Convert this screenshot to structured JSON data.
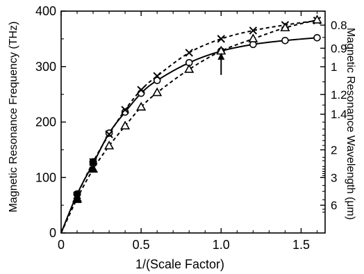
{
  "chart_data": {
    "type": "line",
    "xlabel": "1/(Scale Factor)",
    "ylabel": "Magnetic Resonance Frequency (THz)",
    "y2label": "Magnetic Resonance Wavelength (μm)",
    "xlim": [
      0,
      1.65
    ],
    "ylim": [
      0,
      400
    ],
    "xticks": [
      0,
      0.5,
      1.0,
      1.5
    ],
    "xtick_labels": [
      "0",
      "0.5",
      "1.0",
      "1.5"
    ],
    "yticks": [
      0,
      100,
      200,
      300,
      400
    ],
    "ytick_labels": [
      "0",
      "100",
      "200",
      "300",
      "400"
    ],
    "y2_major_ticks": [
      {
        "freq": 374.74,
        "label": "0.8"
      },
      {
        "freq": 333.1,
        "label": "0.9"
      },
      {
        "freq": 299.79,
        "label": "1"
      },
      {
        "freq": 249.83,
        "label": "1.2"
      },
      {
        "freq": 214.14,
        "label": "1.4"
      },
      {
        "freq": 149.9,
        "label": "2"
      },
      {
        "freq": 99.93,
        "label": "3"
      },
      {
        "freq": 49.97,
        "label": "6"
      }
    ],
    "y2_minor_ticks": [
      428.3,
      399.7,
      352.7,
      315.6,
      272.5,
      230.6,
      199.9,
      187.4,
      176.3,
      166.6,
      157.8,
      136.3,
      130.3,
      119.9,
      115.3,
      111.0,
      107.1,
      103.4,
      85.7,
      75.0,
      59.96,
      42.8,
      37.5
    ],
    "grid": false,
    "series": [
      {
        "marker": "circle-open",
        "line": "solid",
        "x": [
          0.1,
          0.2,
          0.3,
          0.4,
          0.5,
          0.6,
          0.8,
          1.0,
          1.2,
          1.4,
          1.6
        ],
        "y": [
          70,
          125,
          180,
          218,
          252,
          275,
          307,
          328,
          340,
          347,
          352
        ]
      },
      {
        "marker": "x",
        "line": "dashed",
        "x": [
          0.1,
          0.2,
          0.3,
          0.4,
          0.5,
          0.6,
          0.8,
          1.0,
          1.2,
          1.4,
          1.6
        ],
        "y": [
          68,
          128,
          178,
          222,
          258,
          283,
          325,
          350,
          365,
          375,
          383
        ]
      },
      {
        "marker": "triangle-open",
        "line": "dashed",
        "x": [
          0.1,
          0.2,
          0.3,
          0.4,
          0.5,
          0.6,
          0.8,
          1.0,
          1.2,
          1.4,
          1.6
        ],
        "y": [
          62,
          115,
          157,
          193,
          227,
          253,
          295,
          328,
          350,
          370,
          384
        ]
      },
      {
        "marker": "circle-filled",
        "line": "none",
        "x": [
          0.1,
          0.2
        ],
        "y": [
          70,
          128
        ]
      },
      {
        "marker": "triangle-filled",
        "line": "none",
        "x": [
          0.1,
          0.2
        ],
        "y": [
          60,
          115
        ]
      }
    ],
    "annotations": [
      {
        "type": "arrow",
        "direction": "up",
        "x": 1.0,
        "y_tip": 325,
        "y_tail": 285
      }
    ]
  }
}
